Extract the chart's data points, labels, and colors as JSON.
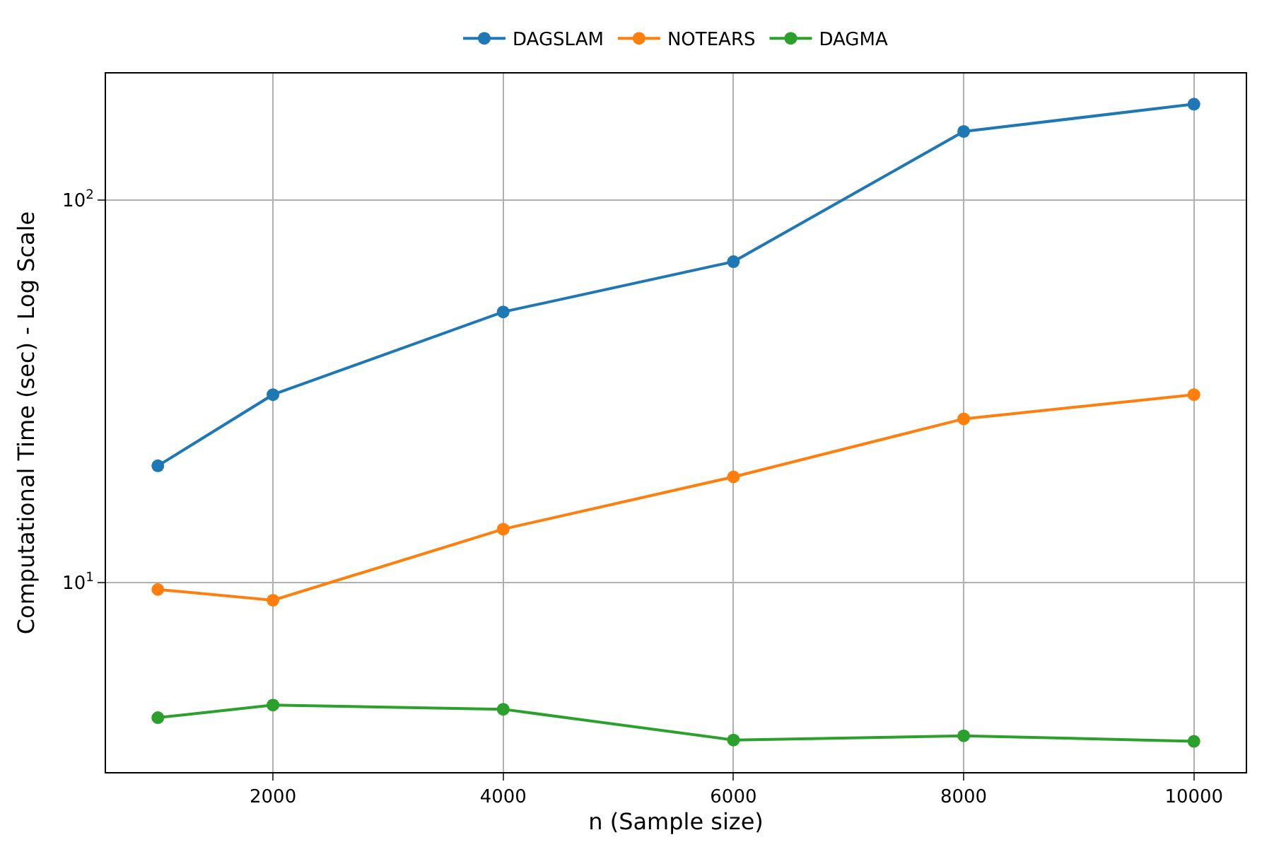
{
  "chart_data": {
    "type": "line",
    "xlabel": "n (Sample size)",
    "ylabel": "Computational Time (sec) - Log Scale",
    "x": [
      1000,
      2000,
      4000,
      6000,
      8000,
      10000
    ],
    "series": [
      {
        "name": "DAGSLAM",
        "color": "#1f77b4",
        "values": [
          20.2,
          31,
          51,
          69,
          151,
          178
        ]
      },
      {
        "name": "NOTEARS",
        "color": "#ff7f0e",
        "values": [
          9.6,
          9.0,
          13.8,
          18.9,
          26.8,
          31
        ]
      },
      {
        "name": "DAGMA",
        "color": "#2ca02c",
        "values": [
          4.44,
          4.79,
          4.67,
          3.88,
          3.98,
          3.85
        ]
      }
    ],
    "xlim": [
      550,
      10450
    ],
    "xticks": [
      2000,
      4000,
      6000,
      8000,
      10000
    ],
    "ylim": [
      3.2,
      214
    ],
    "yticks": [
      {
        "value": 10,
        "label": "10$^{1}$"
      },
      {
        "value": 100,
        "label": "10$^{2}$"
      }
    ],
    "log": "y",
    "grid": true,
    "legend": "top",
    "marker": "circle",
    "line_style": "solid"
  }
}
